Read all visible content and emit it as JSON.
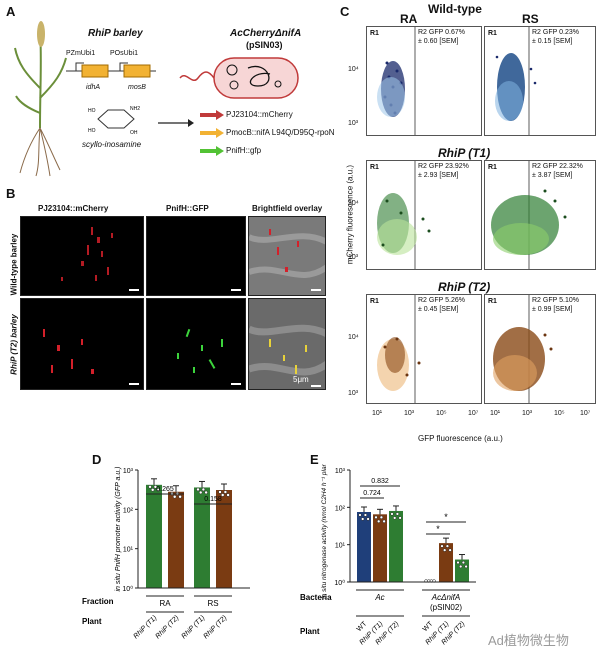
{
  "panels": {
    "A": "A",
    "B": "B",
    "C": "C",
    "D": "D",
    "E": "E"
  },
  "panelA": {
    "rhip_barley": "RhiP barley",
    "promoter1": "PZmUbi1",
    "promoter2": "POsUbi1",
    "gene1": "idhA",
    "gene2": "mosB",
    "compound": "scyllo-inosamine",
    "strain_title": "AcCherryΔnifA",
    "plasmid": "(pSIN03)",
    "construct1": "PJ23104::mCherry",
    "construct2": "PmocB::nifA L94Q/D95Q-rpoN",
    "construct3": "PnifH::gfp"
  },
  "panelB": {
    "col1": "PJ23104::mCherry",
    "col2": "PnifH::GFP",
    "col3": "Brightfield overlay",
    "row1": "Wild-type barley",
    "row2": "RhiP (T2) barley",
    "scale": "5μm"
  },
  "panelC": {
    "header": "Wild-type",
    "col_ra": "RA",
    "col_rs": "RS",
    "row2": "RhiP (T1)",
    "row3": "RhiP (T2)",
    "ylabel": "mCherry fluorescence (a.u.)",
    "xlabel": "GFP fluorescence (a.u.)",
    "r1": "R1",
    "cells": [
      {
        "r2": "R2 GFP 0.67%",
        "sem": "± 0.60 [SEM]"
      },
      {
        "r2": "R2 GFP 0.23%",
        "sem": "± 0.15 [SEM]"
      },
      {
        "r2": "R2 GFP 23.92%",
        "sem": "± 2.93 [SEM]"
      },
      {
        "r2": "R2 GFP 22.32%",
        "sem": "± 3.87 [SEM]"
      },
      {
        "r2": "R2 GFP 5.26%",
        "sem": "± 0.45 [SEM]"
      },
      {
        "r2": "R2 GFP 5.10%",
        "sem": "± 0.99 [SEM]"
      }
    ],
    "yticks": [
      "10⁴",
      "10³"
    ],
    "xticks": [
      "10¹",
      "10³",
      "10⁵",
      "10⁷"
    ]
  },
  "chart_data": [
    {
      "type": "bar",
      "title": "",
      "ylabel": "in situ PnifH promoter activity (GFP a.u.)",
      "yscale": "log",
      "ylim": [
        1,
        1000
      ],
      "yticks": [
        "10⁰",
        "10¹",
        "10²",
        "10³"
      ],
      "categories": [
        "RhiP (T1)",
        "RhiP (T2)",
        "RhiP (T1)",
        "RhiP (T2)"
      ],
      "groups": [
        "RA",
        "RS"
      ],
      "values": [
        420,
        280,
        360,
        310
      ],
      "colors": [
        "#2e7d32",
        "#7a3b12",
        "#2e7d32",
        "#7a3b12"
      ],
      "annotations": [
        "0.265",
        "0.158"
      ],
      "row_labels": {
        "fraction": "Fraction",
        "plant": "Plant"
      }
    },
    {
      "type": "bar",
      "title": "",
      "ylabel": "in situ nitrogenase activity (nmol C2H4 h⁻¹ plant⁻¹)",
      "yscale": "log",
      "ylim": [
        1,
        1000
      ],
      "yticks": [
        "10⁰",
        "10¹",
        "10²",
        "10³"
      ],
      "categories": [
        "WT",
        "RhiP (T1)",
        "RhiP (T2)",
        "WT",
        "RhiP (T1)",
        "RhiP (T2)"
      ],
      "groups": [
        "Ac",
        "AcΔnifA (pSIN02)"
      ],
      "values": [
        75,
        65,
        80,
        1,
        11,
        4
      ],
      "colors": [
        "#1f3f7a",
        "#7a3b12",
        "#2e7d32",
        "#1f3f7a",
        "#7a3b12",
        "#2e7d32"
      ],
      "annotations": [
        "0.724",
        "0.832",
        "*",
        "*"
      ],
      "row_labels": {
        "bacteria": "Bacteria",
        "plant": "Plant"
      }
    }
  ],
  "watermark": "Ad植物微生物"
}
